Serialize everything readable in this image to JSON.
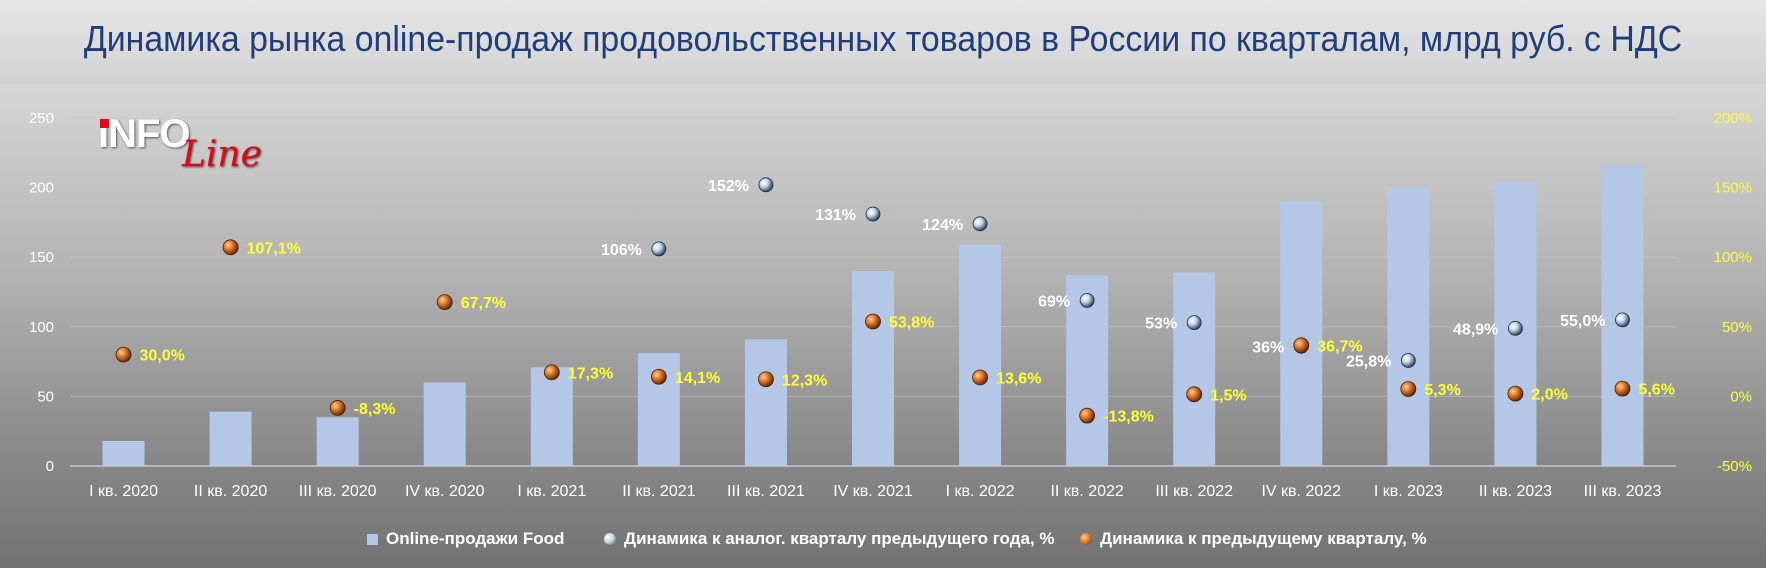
{
  "title": "Динамика рынка online-продаж продовольственных товаров в России по кварталам, млрд руб. с НДС",
  "logo": {
    "main": "INFO",
    "accent": "Line"
  },
  "colors": {
    "bar": "#b4c7e7",
    "yoy_marker": "#dce8f2",
    "qoq_marker": "#e07b2a",
    "title": "#1f3e7a",
    "right_axis": "#ffff33"
  },
  "chart_data": {
    "type": "bar",
    "categories": [
      "I кв. 2020",
      "II кв. 2020",
      "III кв. 2020",
      "IV кв. 2020",
      "I кв. 2021",
      "II кв. 2021",
      "III кв. 2021",
      "IV кв. 2021",
      "I кв. 2022",
      "II кв. 2022",
      "III кв. 2022",
      "IV кв. 2022",
      "I кв. 2023",
      "II кв. 2023",
      "III кв. 2023"
    ],
    "y_left": {
      "range": [
        0,
        250
      ],
      "ticks": [
        "0",
        "50",
        "100",
        "150",
        "200",
        "250"
      ]
    },
    "y_right": {
      "range": [
        -50,
        200
      ],
      "ticks": [
        "-50%",
        "0%",
        "50%",
        "100%",
        "150%",
        "200%"
      ]
    },
    "series": [
      {
        "name": "Online-продажи Food",
        "type": "bar",
        "axis": "left",
        "values": [
          18,
          39,
          35,
          60,
          71,
          81,
          91,
          140,
          159,
          137,
          139,
          190,
          200,
          204,
          216
        ]
      },
      {
        "name": "Динамика к аналог. кварталу предыдущего года, %",
        "type": "scatter",
        "axis": "right",
        "values": [
          null,
          null,
          null,
          null,
          null,
          106,
          152,
          131,
          124,
          69,
          53,
          36,
          25.8,
          48.9,
          55.0
        ],
        "labels": [
          "",
          "",
          "",
          "",
          "",
          "106%",
          "152%",
          "131%",
          "124%",
          "69%",
          "53%",
          "36%",
          "25,8%",
          "48,9%",
          "55,0%"
        ]
      },
      {
        "name": "Динамика к предыдущему кварталу, %",
        "type": "scatter",
        "axis": "right",
        "values": [
          30.0,
          107.1,
          -8.3,
          67.7,
          17.3,
          14.1,
          12.3,
          53.8,
          13.6,
          -13.8,
          1.5,
          36.7,
          5.3,
          2.0,
          5.6
        ],
        "labels": [
          "30,0%",
          "107,1%",
          "-8,3%",
          "67,7%",
          "17,3%",
          "14,1%",
          "12,3%",
          "53,8%",
          "13,6%",
          "-13,8%",
          "1,5%",
          "36,7%",
          "5,3%",
          "2,0%",
          "5,6%"
        ]
      }
    ],
    "legend": [
      "Online-продажи Food",
      "Динамика к аналог. кварталу предыдущего года, %",
      "Динамика к предыдущему кварталу, %"
    ],
    "legend_position": "bottom",
    "grid": true
  }
}
